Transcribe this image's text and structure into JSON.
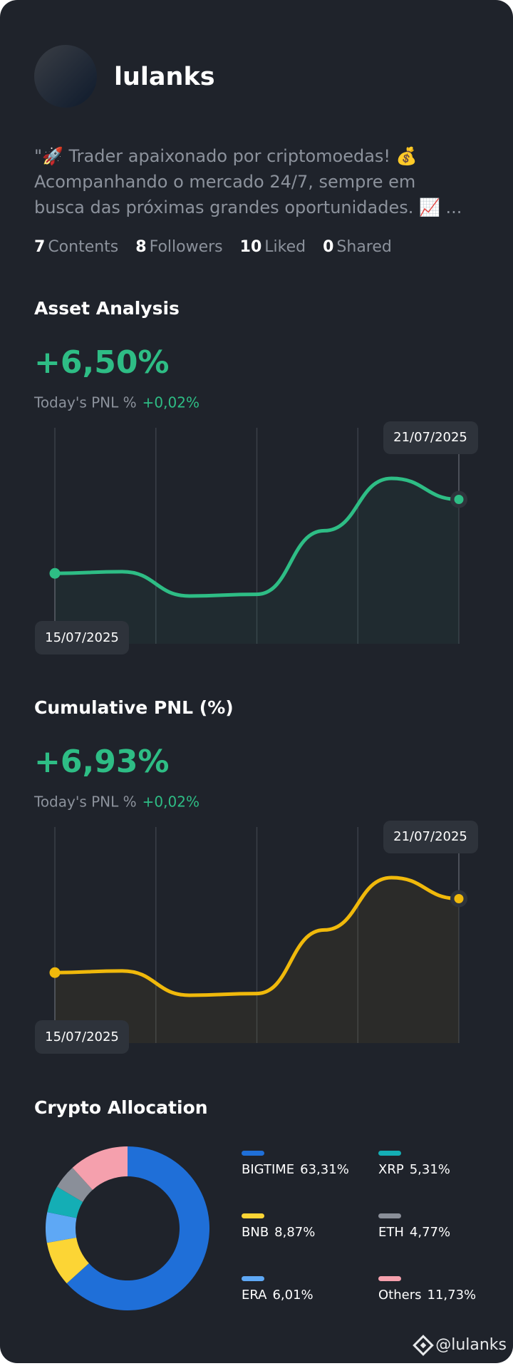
{
  "profile": {
    "name": "lulanks",
    "bio": [
      "\"🚀 Trader apaixonado por criptomoedas! 💰",
      "Acompanhando o mercado 24/7, sempre em",
      "busca das próximas grandes oportunidades. 📈 ..."
    ],
    "stats": [
      {
        "value": "7",
        "label": "Contents"
      },
      {
        "value": "8",
        "label": "Followers"
      },
      {
        "value": "10",
        "label": "Liked"
      },
      {
        "value": "0",
        "label": "Shared"
      }
    ]
  },
  "chart_data": [
    {
      "type": "line",
      "title": "Asset Analysis",
      "headline": "+6,50%",
      "pnl_label": "Today's PNL %",
      "pnl_value": "+0,02%",
      "color": "#2ebd85",
      "categories": [
        "15/07/2025",
        null,
        null,
        null,
        null,
        null,
        "21/07/2025"
      ],
      "values": [
        0,
        0.15,
        -1.99,
        -1.84,
        3.75,
        8.35,
        6.5
      ]
    },
    {
      "type": "line",
      "title": "Cumulative PNL (%)",
      "headline": "+6,93%",
      "pnl_label": "Today's PNL %",
      "pnl_value": "+0,02%",
      "color": "#f0b90b",
      "categories": [
        "15/07/2025",
        null,
        null,
        null,
        null,
        null,
        "21/07/2025"
      ],
      "values": [
        0.43,
        0.58,
        -1.56,
        -1.41,
        4.18,
        8.78,
        6.93
      ]
    },
    {
      "type": "pie",
      "title": "Crypto Allocation",
      "categories": [
        "BIGTIME",
        "BNB",
        "ERA",
        "XRP",
        "ETH",
        "Others"
      ],
      "values": [
        63.31,
        8.87,
        6.01,
        5.31,
        4.77,
        11.73
      ],
      "value_labels": [
        "63,31%",
        "8,87%",
        "6,01%",
        "5,31%",
        "4,77%",
        "11,73%"
      ],
      "colors": [
        "#1f6fd8",
        "#fcd535",
        "#5ea8f5",
        "#14aeb5",
        "#8a8f99",
        "#f5a0ad"
      ]
    }
  ],
  "footer": "@lulanks"
}
